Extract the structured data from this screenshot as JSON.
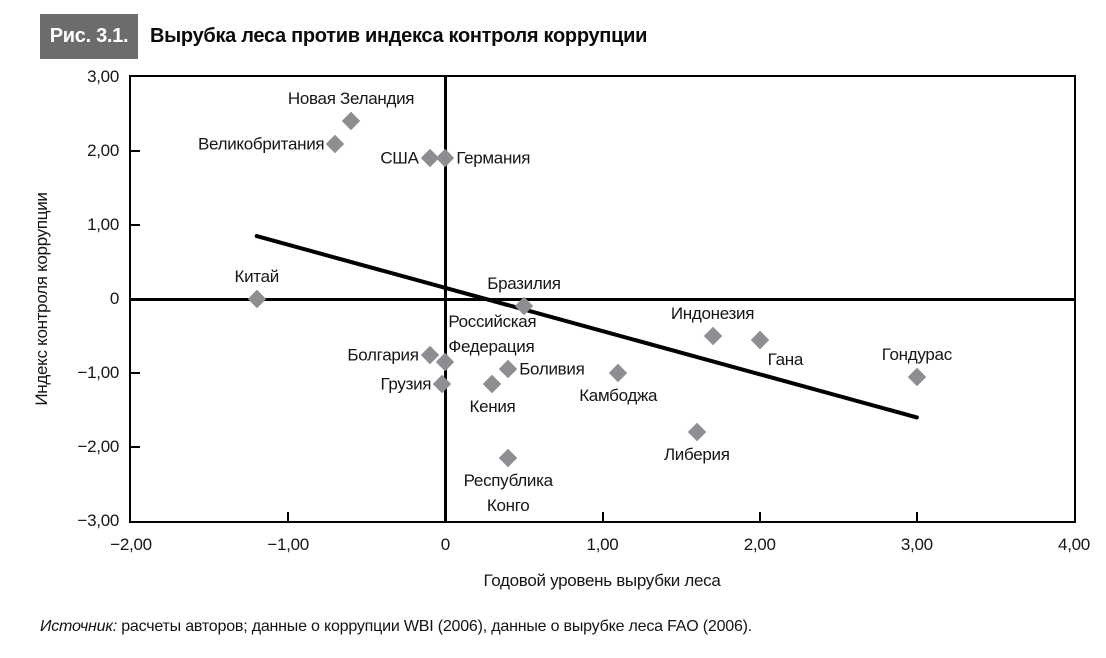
{
  "figure": {
    "tag": "Рис. 3.1.",
    "title": "Вырубка леса против индекса контроля коррупции"
  },
  "source": {
    "prefix": "Источник:",
    "text": " расчеты авторов; данные о коррупции WBI (2006), данные о вырубке леса FAO (2006)."
  },
  "chart_data": {
    "type": "scatter",
    "title": "Вырубка леса против индекса контроля коррупции",
    "xlabel": "Годовой уровень вырубки леса",
    "ylabel": "Индекс контроля коррупции",
    "xlim": [
      -2,
      4
    ],
    "ylim": [
      -3,
      3
    ],
    "grid": false,
    "x_ticks": {
      "values": [
        -2,
        -1,
        0,
        1,
        2,
        3,
        4
      ],
      "labels": [
        "−2,00",
        "−1,00",
        "0",
        "1,00",
        "2,00",
        "3,00",
        "4,00"
      ]
    },
    "y_ticks": {
      "values": [
        3,
        2,
        1,
        0,
        -1,
        -2,
        -3
      ],
      "labels": [
        "3,00",
        "2,00",
        "1,00",
        "0",
        "−1,00",
        "−2,00",
        "−3,00"
      ]
    },
    "x_inner_tick_marks": [
      -1,
      1,
      2,
      3
    ],
    "y_inner_tick_marks": [
      2,
      1,
      -1,
      -2
    ],
    "zero_lines": {
      "x": 0,
      "y": 0
    },
    "points": [
      {
        "name": "Новая Зеландия",
        "x": -0.6,
        "y": 2.4,
        "label_pos": "above"
      },
      {
        "name": "Великобритания",
        "x": -0.7,
        "y": 2.1,
        "label_pos": "left"
      },
      {
        "name": "США",
        "x": -0.1,
        "y": 1.9,
        "label_pos": "left"
      },
      {
        "name": "Германия",
        "x": 0.0,
        "y": 1.9,
        "label_pos": "right"
      },
      {
        "name": "Китай",
        "x": -1.2,
        "y": 0.0,
        "label_pos": "above"
      },
      {
        "name": "Бразилия",
        "x": 0.5,
        "y": -0.1,
        "label_pos": "above"
      },
      {
        "name": "Российская Федерация",
        "x": 0.0,
        "y": -0.85,
        "label_pos": "above-right",
        "label_lines": [
          "Российская",
          "Федерация"
        ]
      },
      {
        "name": "Болгария",
        "x": -0.1,
        "y": -0.75,
        "label_pos": "left"
      },
      {
        "name": "Грузия",
        "x": -0.02,
        "y": -1.15,
        "label_pos": "left"
      },
      {
        "name": "Кения",
        "x": 0.3,
        "y": -1.15,
        "label_pos": "below"
      },
      {
        "name": "Боливия",
        "x": 0.4,
        "y": -0.95,
        "label_pos": "right"
      },
      {
        "name": "Камбоджа",
        "x": 1.1,
        "y": -1.0,
        "label_pos": "below"
      },
      {
        "name": "Индонезия",
        "x": 1.7,
        "y": -0.5,
        "label_pos": "above"
      },
      {
        "name": "Гана",
        "x": 2.0,
        "y": -0.55,
        "label_pos": "below-right"
      },
      {
        "name": "Гондурас",
        "x": 3.0,
        "y": -1.05,
        "label_pos": "above"
      },
      {
        "name": "Либерия",
        "x": 1.6,
        "y": -1.8,
        "label_pos": "below"
      },
      {
        "name": "Республика Конго",
        "x": 0.4,
        "y": -2.15,
        "label_pos": "below",
        "label_lines": [
          "Республика",
          "Конго"
        ]
      }
    ],
    "trend_line": {
      "x1": -1.2,
      "y1": 0.85,
      "x2": 3.0,
      "y2": -1.6
    },
    "colors": {
      "point": "#8c8e91",
      "trend_line": "#000000",
      "tag_bg": "#6b6c6e",
      "text": "#15151a"
    }
  }
}
